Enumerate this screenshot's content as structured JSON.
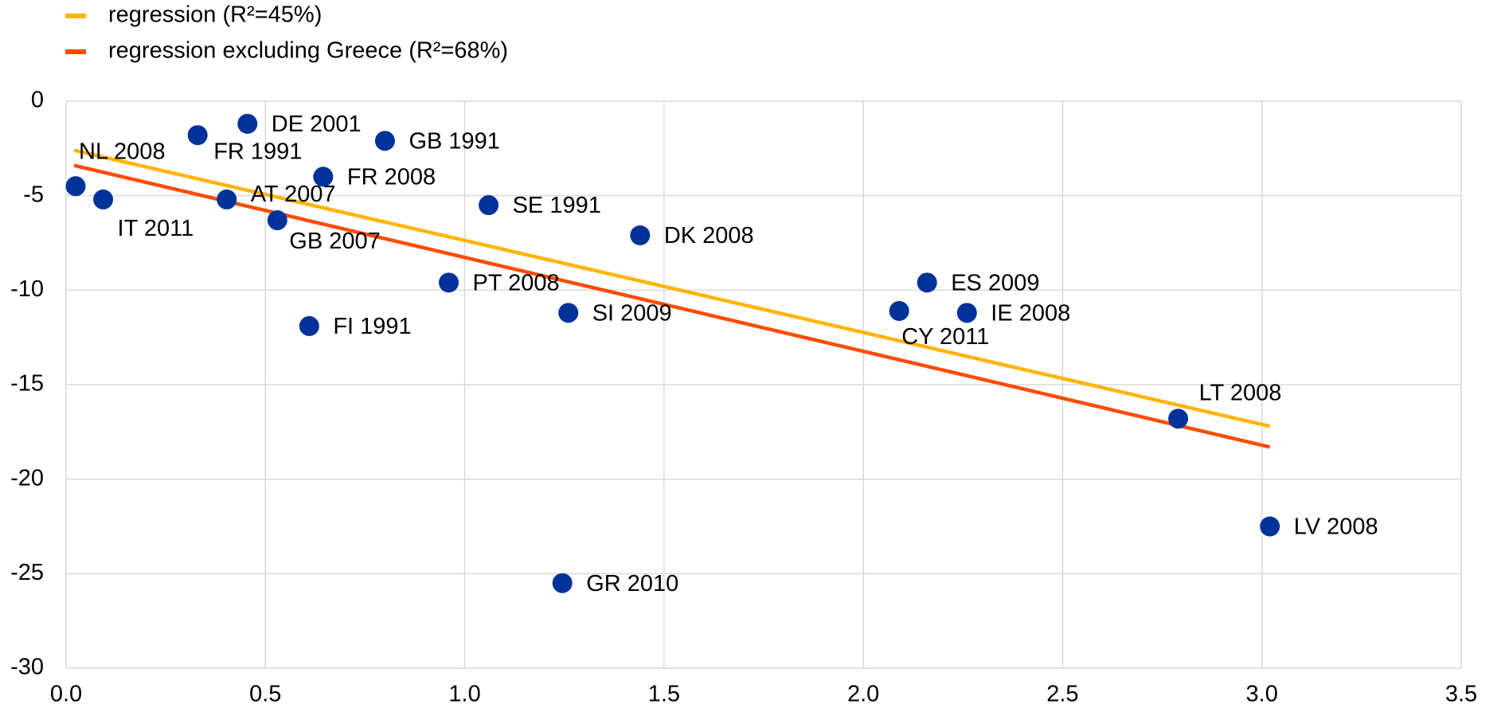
{
  "chart_data": {
    "type": "scatter",
    "series": [
      {
        "name": "regression (R²=45%)",
        "color": "#ffb400",
        "x": [
          0.02,
          3.02
        ],
        "values": [
          -2.6,
          -17.2
        ]
      },
      {
        "name": "regression excluding Greece (R²=68%)",
        "color": "#ff4b00",
        "x": [
          0.02,
          3.02
        ],
        "values": [
          -3.4,
          -18.3
        ]
      }
    ],
    "points": {
      "color": "#003299",
      "labels": [
        "NL 2008",
        "IT 2011",
        "FR 1991",
        "DE 2001",
        "AT 2007",
        "GB 2007",
        "FI 1991",
        "FR 2008",
        "GB 1991",
        "PT 2008",
        "SE 1991",
        "GR 2010",
        "SI 2009",
        "DK 2008",
        "CY 2011",
        "ES 2009",
        "IE 2008",
        "LT 2008",
        "LV 2008"
      ],
      "x": [
        0.024,
        0.093,
        0.33,
        0.455,
        0.403,
        0.53,
        0.61,
        0.645,
        0.8,
        0.96,
        1.06,
        1.245,
        1.26,
        1.44,
        2.09,
        2.16,
        2.26,
        2.79,
        3.02
      ],
      "values": [
        -4.5,
        -5.2,
        -1.8,
        -1.2,
        -5.2,
        -6.3,
        -11.9,
        -4.0,
        -2.1,
        -9.6,
        -5.5,
        -25.5,
        -11.2,
        -7.1,
        -11.1,
        -9.6,
        -11.2,
        -16.8,
        -22.5
      ]
    },
    "xlim": [
      0,
      3.5
    ],
    "xticks": [
      {
        "value": 0,
        "label": "0.0"
      },
      {
        "value": 0.5,
        "label": "0.5"
      },
      {
        "value": 1,
        "label": "1.0"
      },
      {
        "value": 1.5,
        "label": "1.5"
      },
      {
        "value": 2,
        "label": "2.0"
      },
      {
        "value": 2.5,
        "label": "2.5"
      },
      {
        "value": 3,
        "label": "3.0"
      },
      {
        "value": 3.5,
        "label": "3.5"
      }
    ],
    "ylim": [
      -30,
      0
    ],
    "yticks": [
      0,
      -5,
      -10,
      -15,
      -20,
      -25,
      -30
    ],
    "grid": true
  }
}
